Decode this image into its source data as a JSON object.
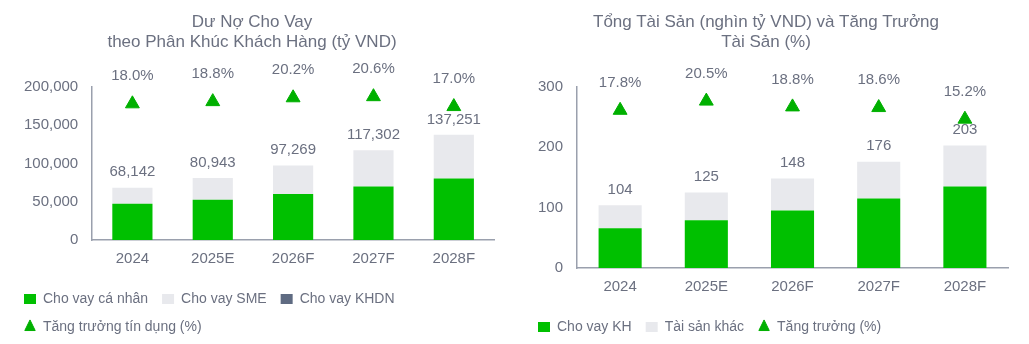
{
  "chart_data": [
    {
      "type": "bar",
      "title": "Dư Nợ Cho Vay\ntheo Phân Khúc Khách Hàng (tỷ VND)",
      "categories": [
        "2024",
        "2025E",
        "2026F",
        "2027F",
        "2028F"
      ],
      "stacked": true,
      "legend": "bottom",
      "grid": false,
      "ylim": [
        0,
        200000
      ],
      "yticks": [
        {
          "value": 0,
          "label": "0"
        },
        {
          "value": 50000,
          "label": "50,000"
        },
        {
          "value": 100000,
          "label": "100,000"
        },
        {
          "value": 150000,
          "label": "150,000"
        },
        {
          "value": 200000,
          "label": "200,000"
        }
      ],
      "y2lim": [
        -31.6,
        24.2
      ],
      "totals": [
        "68,142",
        "80,943",
        "97,269",
        "117,302",
        "137,251"
      ],
      "series": [
        {
          "name": "Cho vay cá nhân",
          "color": "#00c000",
          "values": [
            47300,
            52500,
            60200,
            69700,
            80400
          ]
        },
        {
          "name": "Cho vay SME",
          "color": "#e8e9ed",
          "values": [
            20842,
            28443,
            37069,
            47602,
            56851
          ]
        },
        {
          "name": "Cho vay KHDN",
          "color": "#5f6b82",
          "values": [
            null,
            null,
            null,
            null,
            null
          ]
        },
        {
          "name": "Tăng trưởng tín dụng (%)",
          "type": "scatter",
          "axis": "y2",
          "marker": "triangle",
          "color": "#00b000",
          "values": [
            18.0,
            18.8,
            20.2,
            20.6,
            17.0
          ],
          "value_labels": [
            "18.0%",
            "18.8%",
            "20.2%",
            "20.6%",
            "17.0%"
          ]
        }
      ]
    },
    {
      "type": "bar",
      "title": "Tổng Tài Sản (nghìn tỷ VND) và Tăng Trưởng\nTài Sản (%)",
      "categories": [
        "2024",
        "2025E",
        "2026F",
        "2027F",
        "2028F"
      ],
      "stacked": true,
      "legend": "bottom",
      "grid": false,
      "ylim": [
        0,
        300
      ],
      "yticks": [
        0,
        100,
        200,
        300
      ],
      "y2lim": [
        -28.5,
        24.7
      ],
      "totals": [
        "104",
        "125",
        "148",
        "176",
        "203"
      ],
      "series": [
        {
          "name": "Cho vay KH",
          "color": "#00c000",
          "values": [
            66,
            79,
            95,
            115,
            135
          ]
        },
        {
          "name": "Tài sản khác",
          "color": "#e8e9ed",
          "values": [
            38,
            46,
            53,
            61,
            68
          ]
        },
        {
          "name": "Tăng trưởng (%)",
          "type": "scatter",
          "axis": "y2",
          "marker": "triangle",
          "color": "#00b000",
          "values": [
            17.8,
            20.5,
            18.8,
            18.6,
            15.2
          ],
          "value_labels": [
            "17.8%",
            "20.5%",
            "18.8%",
            "18.6%",
            "15.2%"
          ]
        }
      ]
    }
  ]
}
